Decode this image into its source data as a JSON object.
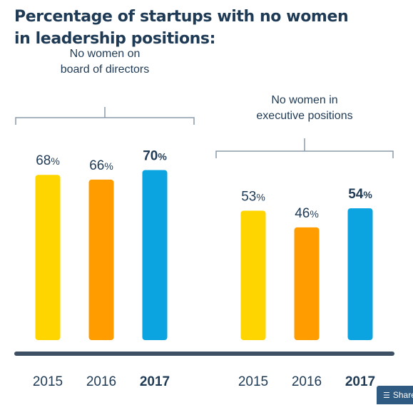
{
  "title": {
    "line1": "Percentage of startups with no women",
    "line2": "in leadership positions:"
  },
  "share": {
    "label": "Share",
    "icon": "layers-icon"
  },
  "chart_data": {
    "type": "bar",
    "title": "Percentage of startups with no women in leadership positions:",
    "ylim": [
      0,
      100
    ],
    "unit": "%",
    "grid": false,
    "legend": "none",
    "groups": [
      {
        "label_lines": [
          "No women on",
          "board of directors"
        ],
        "categories": [
          "2015",
          "2016",
          "2017"
        ],
        "values": [
          68,
          66,
          70
        ],
        "highlight_index": 2
      },
      {
        "label_lines": [
          "No women in",
          "executive positions"
        ],
        "categories": [
          "2015",
          "2016",
          "2017"
        ],
        "values": [
          53,
          46,
          54
        ],
        "highlight_index": 2
      }
    ],
    "colors": [
      "#ffd500",
      "#ff9d00",
      "#0ba4e0"
    ],
    "axis_color": "#3d4f62",
    "text_color": "#1f3a55",
    "bracket_color": "#8a9aa8"
  }
}
